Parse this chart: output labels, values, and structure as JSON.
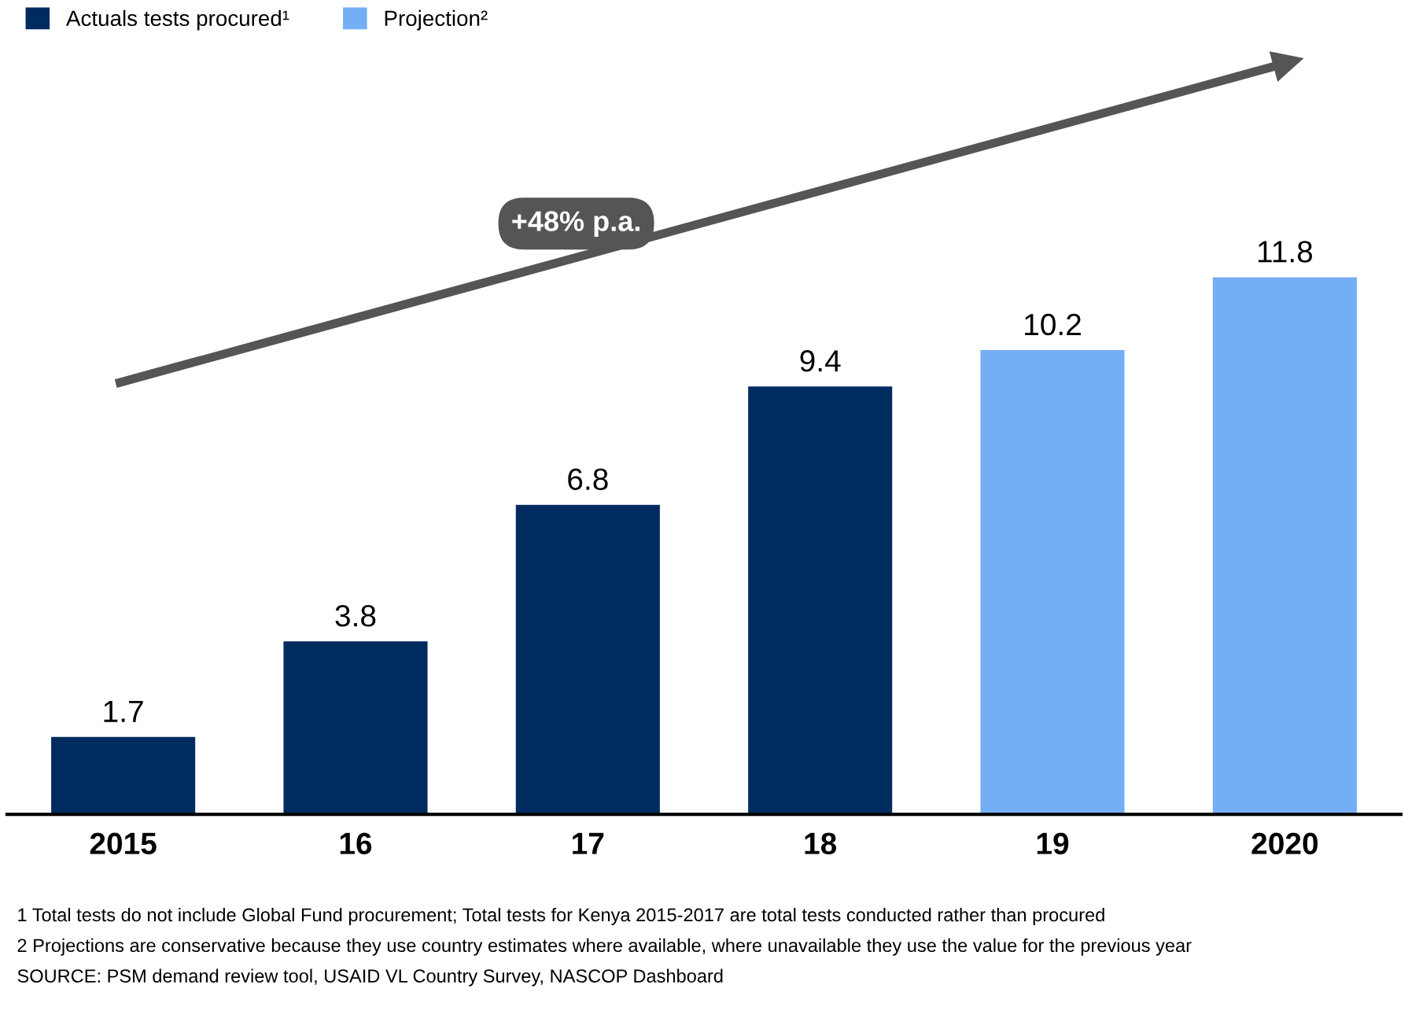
{
  "chart_data": {
    "type": "bar",
    "data_labels": true,
    "legend": "top left",
    "grid": false,
    "categories": [
      "2015",
      "16",
      "17",
      "18",
      "19",
      "2020"
    ],
    "series": [
      {
        "name": "Actuals tests procured¹",
        "color": "#002b60",
        "values": [
          1.7,
          3.8,
          6.8,
          9.4,
          null,
          null
        ]
      },
      {
        "name": "Projection²",
        "color": "#74aef5",
        "values": [
          null,
          null,
          null,
          null,
          10.2,
          11.8
        ]
      }
    ],
    "annotations": [
      "+48% p.a.",
      "1 Total tests do not include Global Fund procurement; Total tests for Kenya 2015-2017 are total tests conducted rather than procured",
      "2 Projections are conservative because they use country estimates where available, where unavailable they use the value for the previous year",
      "SOURCE: PSM demand review tool, USAID VL Country Survey, NASCOP Dashboard"
    ]
  }
}
